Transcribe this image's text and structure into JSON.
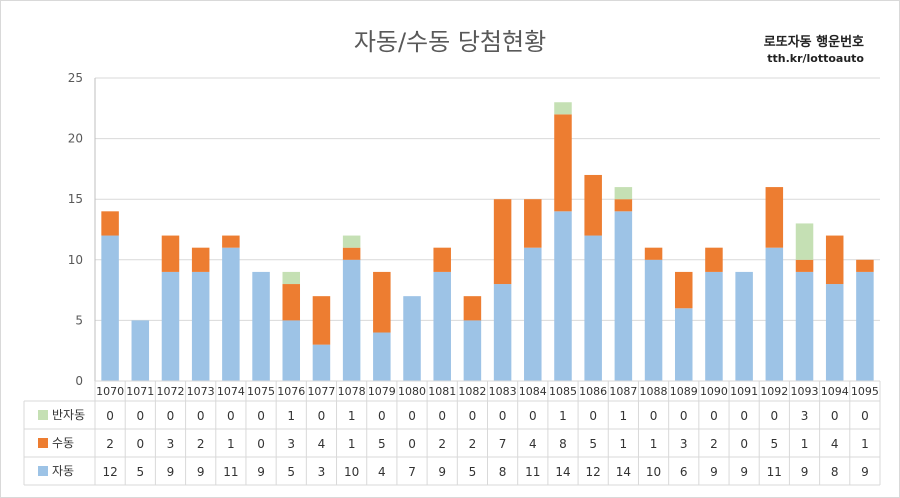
{
  "title": "자동/수동 당첨현황",
  "brand": {
    "name": "로또자동 행운번호",
    "url": "tth.kr/lottoauto"
  },
  "chart_data": {
    "type": "bar",
    "stacked": true,
    "categories": [
      "1070",
      "1071",
      "1072",
      "1073",
      "1074",
      "1075",
      "1076",
      "1077",
      "1078",
      "1079",
      "1080",
      "1081",
      "1082",
      "1083",
      "1084",
      "1085",
      "1086",
      "1087",
      "1088",
      "1089",
      "1090",
      "1091",
      "1092",
      "1093",
      "1094",
      "1095"
    ],
    "series": [
      {
        "name": "자동",
        "color": "#9dc3e6",
        "values": [
          12,
          5,
          9,
          9,
          11,
          9,
          5,
          3,
          10,
          4,
          7,
          9,
          5,
          8,
          11,
          14,
          12,
          14,
          10,
          6,
          9,
          9,
          11,
          9,
          8,
          9
        ]
      },
      {
        "name": "수동",
        "color": "#ed7d31",
        "values": [
          2,
          0,
          3,
          2,
          1,
          0,
          3,
          4,
          1,
          5,
          0,
          2,
          2,
          7,
          4,
          8,
          5,
          1,
          1,
          3,
          2,
          0,
          5,
          1,
          4,
          1
        ]
      },
      {
        "name": "반자동",
        "color": "#c5e0b4",
        "values": [
          0,
          0,
          0,
          0,
          0,
          0,
          1,
          0,
          1,
          0,
          0,
          0,
          0,
          0,
          0,
          1,
          0,
          1,
          0,
          0,
          0,
          0,
          0,
          3,
          0,
          0
        ]
      }
    ],
    "ylim": [
      0,
      25
    ],
    "yticks": [
      0,
      5,
      10,
      15,
      20,
      25
    ],
    "grid": true,
    "legend": "data-table"
  }
}
